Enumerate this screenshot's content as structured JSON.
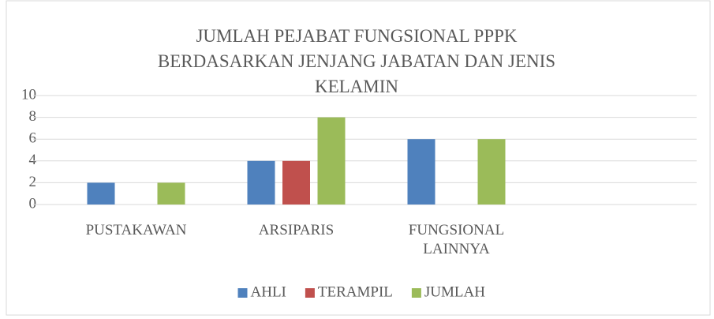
{
  "chart_data": {
    "type": "bar",
    "title": "JUMLAH PEJABAT FUNGSIONAL PPPK BERDASARKAN JENJANG JABATAN DAN JENIS KELAMIN",
    "categories": [
      "PUSTAKAWAN",
      "ARSIPARIS",
      "FUNGSIONAL LAINNYA",
      null
    ],
    "series": [
      {
        "name": "AHLI",
        "color": "#4f81bd",
        "values": [
          2,
          4,
          6,
          null
        ]
      },
      {
        "name": "TERAMPIL",
        "color": "#c0504d",
        "values": [
          0,
          4,
          0,
          null
        ]
      },
      {
        "name": "JUMLAH",
        "color": "#9bbb59",
        "values": [
          2,
          8,
          6,
          null
        ]
      }
    ],
    "ylim": [
      0,
      10
    ],
    "yticks": [
      0,
      2,
      4,
      6,
      8,
      10
    ],
    "grid": true,
    "legend": "bottom"
  }
}
